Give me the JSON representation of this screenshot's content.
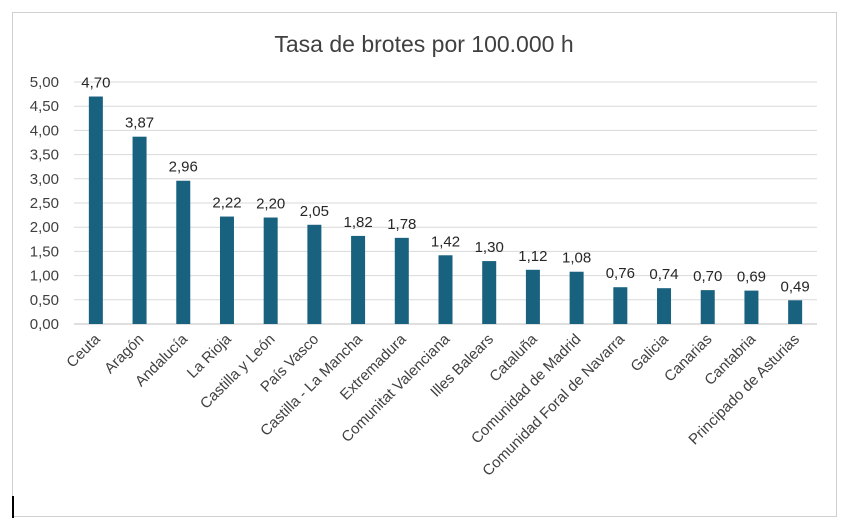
{
  "chart_data": {
    "type": "bar",
    "title": "Tasa de brotes por 100.000 h",
    "xlabel": "",
    "ylabel": "",
    "ylim": [
      0,
      5
    ],
    "yticks": [
      "0,00",
      "0,50",
      "1,00",
      "1,50",
      "2,00",
      "2,50",
      "3,00",
      "3,50",
      "4,00",
      "4,50",
      "5,00"
    ],
    "grid": true,
    "legend": "none",
    "bar_color": "#19627f",
    "categories": [
      "Ceuta",
      "Aragón",
      "Andalucía",
      "La Rioja",
      "Castilla y León",
      "País Vasco",
      "Castilla - La Mancha",
      "Extremadura",
      "Comunitat Valenciana",
      "Illes Balears",
      "Cataluña",
      "Comunidad de Madrid",
      "Comunidad Foral de Navarra",
      "Galicia",
      "Canarias",
      "Cantabria",
      "Principado de Asturias"
    ],
    "values": [
      4.7,
      3.87,
      2.96,
      2.22,
      2.2,
      2.05,
      1.82,
      1.78,
      1.42,
      1.3,
      1.12,
      1.08,
      0.76,
      0.74,
      0.7,
      0.69,
      0.49
    ],
    "value_labels": [
      "4,70",
      "3,87",
      "2,96",
      "2,22",
      "2,20",
      "2,05",
      "1,82",
      "1,78",
      "1,42",
      "1,30",
      "1,12",
      "1,08",
      "0,76",
      "0,74",
      "0,70",
      "0,69",
      "0,49"
    ]
  }
}
